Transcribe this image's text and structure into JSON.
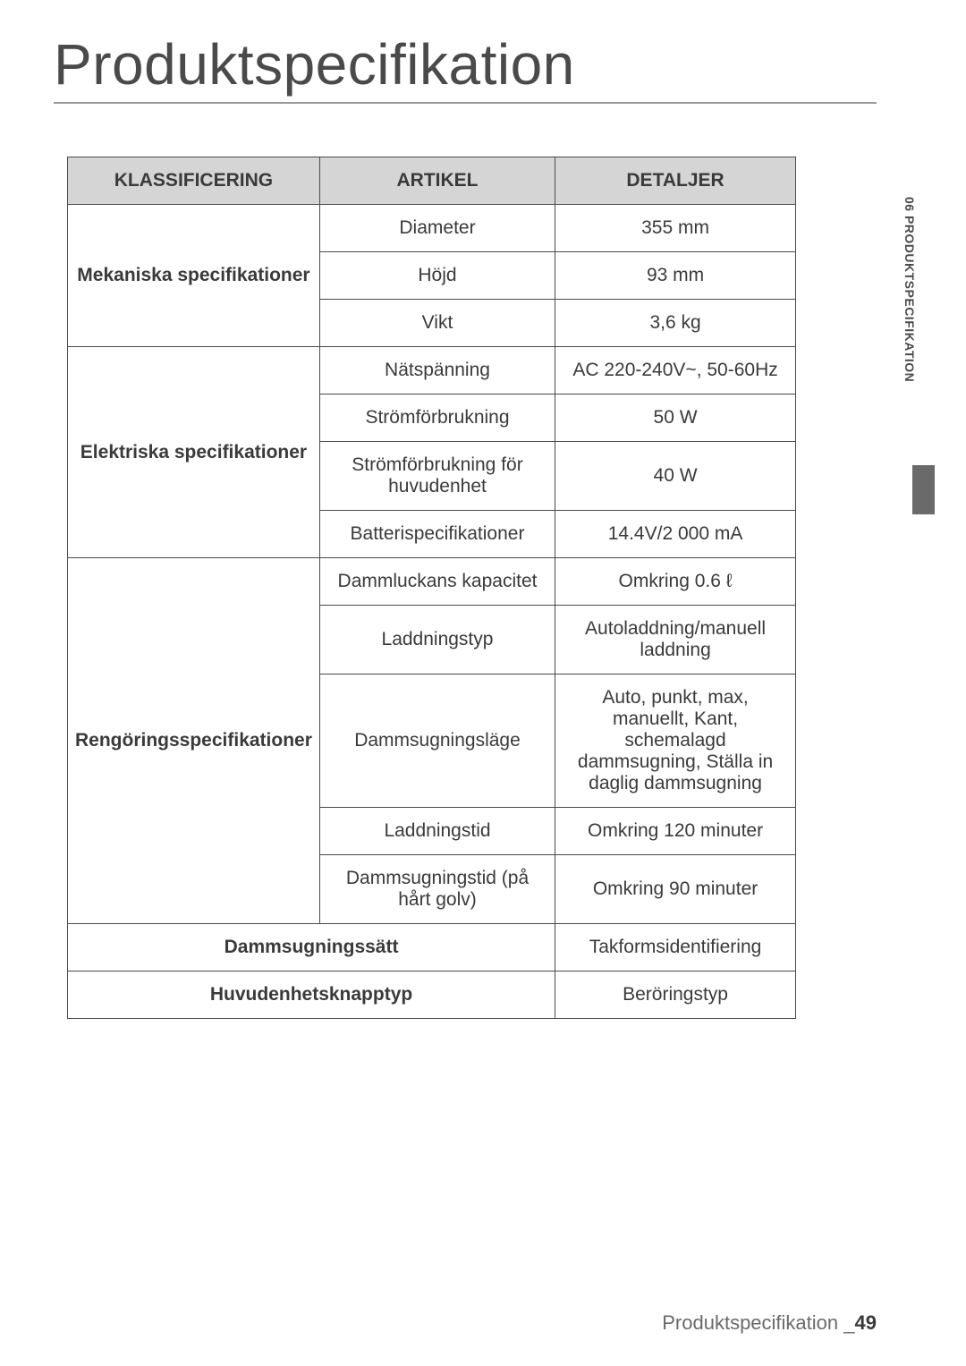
{
  "title": "Produktspecifikation",
  "side_section": "06  PRODUKTSPECIFIKATION",
  "table": {
    "headers": [
      "KLASSIFICERING",
      "ARTIKEL",
      "DETALJER"
    ],
    "groups": [
      {
        "label": "Mekaniska specifikationer",
        "rows": [
          {
            "item": "Diameter",
            "detail": "355 mm"
          },
          {
            "item": "Höjd",
            "detail": "93 mm"
          },
          {
            "item": "Vikt",
            "detail": "3,6 kg"
          }
        ]
      },
      {
        "label": "Elektriska specifikationer",
        "rows": [
          {
            "item": "Nätspänning",
            "detail": "AC 220-240V~, 50-60Hz"
          },
          {
            "item": "Strömförbrukning",
            "detail": "50 W"
          },
          {
            "item": "Strömförbrukning för huvudenhet",
            "detail": "40 W"
          },
          {
            "item": "Batterispecifikationer",
            "detail": "14.4V/2 000 mA"
          }
        ]
      },
      {
        "label": "Rengöringsspecifikationer",
        "label_small": true,
        "rows": [
          {
            "item": "Dammluckans kapacitet",
            "detail": "Omkring 0.6 ℓ"
          },
          {
            "item": "Laddningstyp",
            "detail": "Autoladdning/manuell laddning"
          },
          {
            "item": "Dammsugningsläge",
            "detail": "Auto, punkt, max, manuellt, Kant, schemalagd dammsugning, Ställa in daglig dammsugning"
          },
          {
            "item": "Laddningstid",
            "detail": "Omkring 120 minuter"
          },
          {
            "item": "Dammsugningstid (på hårt golv)",
            "detail": "Omkring 90 minuter"
          }
        ]
      }
    ],
    "single_rows": [
      {
        "label": "Dammsugningssätt",
        "detail": "Takformsidentifiering"
      },
      {
        "label": "Huvudenhetsknapptyp",
        "detail": "Beröringstyp"
      }
    ]
  },
  "footer": {
    "label": "Produktspecifikation",
    "separator": "_",
    "page": "49"
  },
  "colors": {
    "header_bg": "#d5d5d5",
    "border": "#4a4a4a",
    "text": "#3a3a3a",
    "title_text": "#4a4a4a",
    "tab": "#6a6a6a"
  }
}
